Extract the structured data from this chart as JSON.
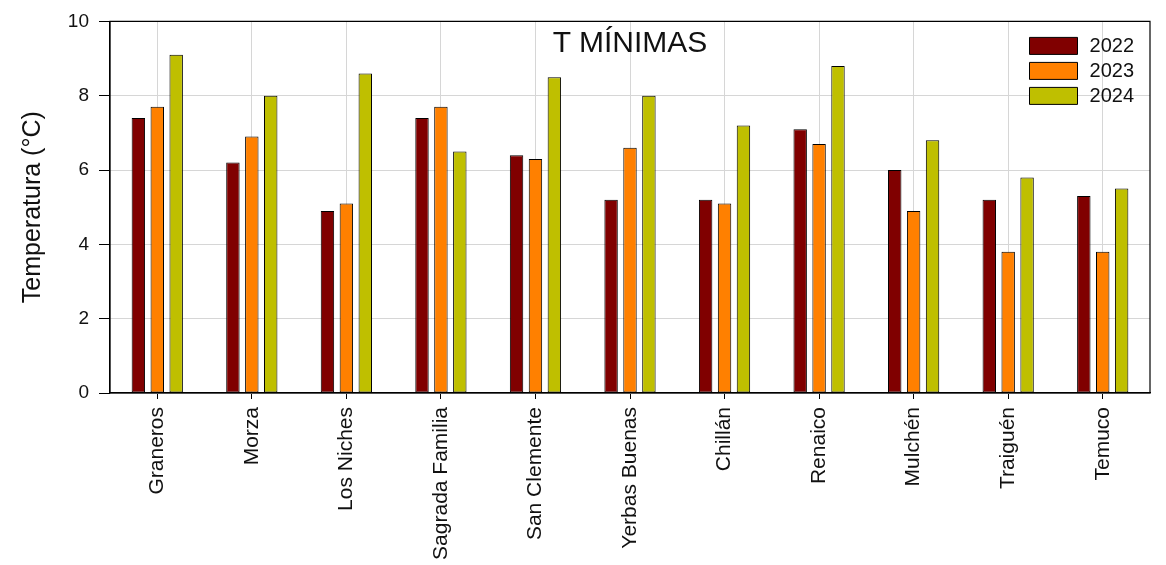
{
  "chart_data": {
    "type": "bar",
    "title": "T MÍNIMAS",
    "ylabel": "Temperatura (°C)",
    "categories": [
      "Graneros",
      "Morza",
      "Los Niches",
      "Sagrada Familia",
      "San Clemente",
      "Yerbas Buenas",
      "Chillán",
      "Renaico",
      "Mulchén",
      "Traiguén",
      "Temuco"
    ],
    "series": [
      {
        "name": "2022",
        "color": "#800000",
        "values": [
          7.4,
          6.2,
          4.9,
          7.4,
          6.4,
          5.2,
          5.2,
          7.1,
          6.0,
          5.2,
          5.3
        ]
      },
      {
        "name": "2023",
        "color": "#ff8000",
        "values": [
          7.7,
          6.9,
          5.1,
          7.7,
          6.3,
          6.6,
          5.1,
          6.7,
          4.9,
          3.8,
          3.8
        ]
      },
      {
        "name": "2024",
        "color": "#bfbf00",
        "values": [
          9.1,
          8.0,
          8.6,
          6.5,
          8.5,
          8.0,
          7.2,
          8.8,
          6.8,
          5.8,
          5.5
        ]
      }
    ],
    "ylim": [
      0,
      10
    ],
    "yticks": [
      0,
      2,
      4,
      6,
      8,
      10
    ],
    "grid": true,
    "legend": "top right"
  }
}
